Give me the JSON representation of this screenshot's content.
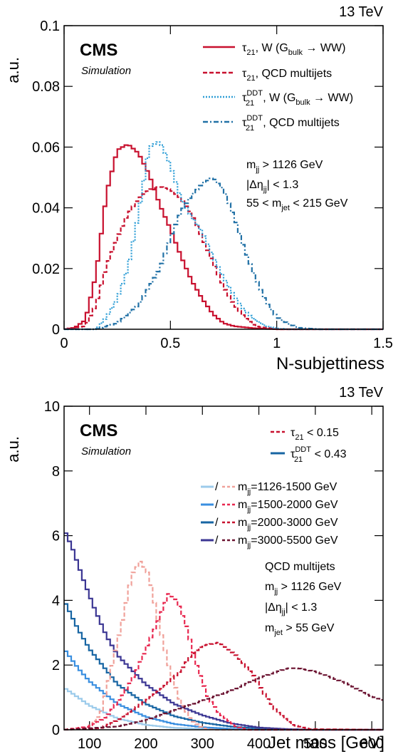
{
  "chart_data": [
    {
      "type": "line",
      "energy": "13 TeV",
      "experiment": "CMS",
      "subtitle": "Simulation",
      "xlabel": "N-subjettiness",
      "ylabel": "a.u.",
      "xlim": [
        0,
        1.5
      ],
      "ylim": [
        0,
        0.1
      ],
      "x_ticks": [
        "0",
        "0.5",
        "1",
        "1.5"
      ],
      "y_ticks": [
        "0",
        "0.02",
        "0.04",
        "0.06",
        "0.08",
        "0.1"
      ],
      "grid": false,
      "legend_position": "top-right",
      "cuts": [
        "m_jj > 1126 GeV",
        "|Δη_jj| < 1.3",
        "55 < m_jet < 215 GeV"
      ],
      "series": [
        {
          "name": "τ21, W (G_bulk → WW)",
          "color": "#c8102e",
          "dash": "solid",
          "x": [
            0.0,
            0.05,
            0.1,
            0.15,
            0.2,
            0.25,
            0.3,
            0.35,
            0.4,
            0.45,
            0.5,
            0.55,
            0.6,
            0.65,
            0.7,
            0.75,
            0.8,
            0.9,
            1.0,
            1.5
          ],
          "y": [
            0.0,
            0.0005,
            0.003,
            0.018,
            0.045,
            0.059,
            0.061,
            0.058,
            0.051,
            0.041,
            0.033,
            0.024,
            0.016,
            0.01,
            0.005,
            0.002,
            0.001,
            0.0003,
            0.0,
            0.0
          ]
        },
        {
          "name": "τ21, QCD multijets",
          "color": "#c8102e",
          "dash": "dashed",
          "x": [
            0.0,
            0.1,
            0.15,
            0.2,
            0.25,
            0.3,
            0.35,
            0.4,
            0.45,
            0.5,
            0.55,
            0.6,
            0.65,
            0.7,
            0.75,
            0.8,
            0.85,
            0.9,
            1.0,
            1.5
          ],
          "y": [
            0.0,
            0.001,
            0.008,
            0.021,
            0.03,
            0.038,
            0.043,
            0.046,
            0.047,
            0.046,
            0.043,
            0.038,
            0.03,
            0.022,
            0.014,
            0.008,
            0.004,
            0.001,
            0.0,
            0.0
          ]
        },
        {
          "name": "τ21^DDT, W (G_bulk → WW)",
          "color": "#2f9ed6",
          "dash": "dotted",
          "x": [
            0.0,
            0.15,
            0.2,
            0.25,
            0.3,
            0.35,
            0.4,
            0.45,
            0.5,
            0.55,
            0.6,
            0.65,
            0.7,
            0.75,
            0.8,
            0.85,
            0.9,
            0.95,
            1.0,
            1.05,
            1.5
          ],
          "y": [
            0.0,
            0.0,
            0.004,
            0.01,
            0.02,
            0.038,
            0.06,
            0.062,
            0.054,
            0.043,
            0.037,
            0.032,
            0.024,
            0.017,
            0.011,
            0.006,
            0.003,
            0.001,
            0.0003,
            0.0,
            0.0
          ]
        },
        {
          "name": "τ21^DDT, QCD multijets",
          "color": "#2171a6",
          "dash": "dashdot",
          "x": [
            0.0,
            0.15,
            0.25,
            0.3,
            0.35,
            0.4,
            0.45,
            0.5,
            0.55,
            0.6,
            0.65,
            0.7,
            0.75,
            0.8,
            0.85,
            0.9,
            0.95,
            1.0,
            1.05,
            1.1,
            1.2,
            1.5
          ],
          "y": [
            0.0,
            0.0,
            0.002,
            0.005,
            0.008,
            0.014,
            0.02,
            0.03,
            0.039,
            0.044,
            0.048,
            0.05,
            0.046,
            0.037,
            0.026,
            0.017,
            0.009,
            0.004,
            0.002,
            0.0005,
            0.0,
            0.0
          ]
        }
      ]
    },
    {
      "type": "line",
      "energy": "13 TeV",
      "experiment": "CMS",
      "subtitle": "Simulation",
      "xlabel": "Jet mass [GeV]",
      "ylabel": "a.u.",
      "xlim": [
        55,
        620
      ],
      "ylim": [
        0,
        10
      ],
      "x_ticks": [
        "100",
        "200",
        "300",
        "400",
        "500",
        "600"
      ],
      "y_ticks": [
        "0",
        "2",
        "4",
        "6",
        "8",
        "10"
      ],
      "grid": false,
      "legend_position": "top-right",
      "legend_cut_labels": [
        "τ21 < 0.15",
        "τ21^DDT < 0.43"
      ],
      "legend_mass_labels": [
        "m_jj=1126-1500 GeV",
        "m_jj=1500-2000 GeV",
        "m_jj=2000-3000 GeV",
        "m_jj=3000-5500 GeV"
      ],
      "cuts": [
        "QCD multijets",
        "m_jj > 1126 GeV",
        "|Δη_jj| < 1.3",
        "m_jet > 55 GeV"
      ],
      "series": [
        {
          "name": "τ21^DDT < 0.43, m_jj=1126-1500 GeV",
          "color": "#9ccbeb",
          "dash": "solid",
          "x": [
            55,
            80,
            100,
            150,
            200,
            250,
            300,
            400,
            620
          ],
          "y": [
            1.3,
            1.0,
            0.75,
            0.35,
            0.15,
            0.06,
            0.03,
            0.0,
            0.0
          ]
        },
        {
          "name": "τ21^DDT < 0.43, m_jj=1500-2000 GeV",
          "color": "#3a8fe0",
          "dash": "solid",
          "x": [
            55,
            80,
            100,
            150,
            200,
            250,
            300,
            350,
            400,
            620
          ],
          "y": [
            2.5,
            1.9,
            1.5,
            0.8,
            0.4,
            0.18,
            0.08,
            0.03,
            0.0,
            0.0
          ]
        },
        {
          "name": "τ21^DDT < 0.43, m_jj=2000-3000 GeV",
          "color": "#1765a3",
          "dash": "solid",
          "x": [
            55,
            80,
            100,
            150,
            200,
            250,
            300,
            350,
            400,
            500,
            620
          ],
          "y": [
            4.0,
            3.1,
            2.5,
            1.4,
            0.8,
            0.42,
            0.22,
            0.1,
            0.04,
            0.0,
            0.0
          ]
        },
        {
          "name": "τ21^DDT < 0.43, m_jj=3000-5500 GeV",
          "color": "#3b3693",
          "dash": "solid",
          "x": [
            55,
            70,
            90,
            110,
            130,
            150,
            200,
            250,
            300,
            350,
            400,
            450,
            500,
            620
          ],
          "y": [
            6.2,
            5.6,
            4.6,
            3.7,
            2.9,
            2.3,
            1.4,
            0.8,
            0.45,
            0.2,
            0.07,
            0.02,
            0.0,
            0.0
          ]
        },
        {
          "name": "τ21 < 0.15, m_jj=1126-1500 GeV",
          "color": "#f0a19a",
          "dash": "dashed",
          "x": [
            55,
            80,
            100,
            120,
            140,
            160,
            175,
            190,
            205,
            220,
            240,
            260,
            280,
            300,
            320,
            620
          ],
          "y": [
            0.0,
            0.02,
            0.1,
            0.5,
            2.0,
            3.5,
            4.8,
            5.2,
            4.8,
            3.5,
            2.0,
            0.9,
            0.3,
            0.05,
            0.0,
            0.0
          ]
        },
        {
          "name": "τ21 < 0.15, m_jj=1500-2000 GeV",
          "color": "#e8274f",
          "dash": "dashed",
          "x": [
            55,
            100,
            130,
            160,
            180,
            200,
            220,
            240,
            255,
            270,
            290,
            310,
            330,
            360,
            380,
            620
          ],
          "y": [
            0.0,
            0.1,
            0.4,
            1.1,
            1.7,
            2.5,
            3.3,
            4.2,
            4.0,
            3.3,
            2.0,
            1.0,
            0.5,
            0.1,
            0.0,
            0.0
          ]
        },
        {
          "name": "τ21 < 0.15, m_jj=2000-3000 GeV",
          "color": "#c8102e",
          "dash": "dashed",
          "x": [
            55,
            120,
            150,
            200,
            230,
            260,
            280,
            300,
            330,
            360,
            390,
            410,
            430,
            460,
            490,
            620
          ],
          "y": [
            0.0,
            0.05,
            0.3,
            0.9,
            1.3,
            1.8,
            2.3,
            2.6,
            2.7,
            2.3,
            1.7,
            1.1,
            0.6,
            0.15,
            0.02,
            0.0
          ]
        },
        {
          "name": "τ21 < 0.15, m_jj=3000-5500 GeV",
          "color": "#6b1230",
          "dash": "dashed",
          "x": [
            55,
            150,
            200,
            250,
            300,
            350,
            400,
            450,
            470,
            500,
            530,
            560,
            590,
            620
          ],
          "y": [
            0.0,
            0.1,
            0.3,
            0.6,
            0.9,
            1.2,
            1.6,
            1.9,
            1.9,
            1.8,
            1.6,
            1.4,
            1.1,
            0.9
          ]
        }
      ]
    }
  ]
}
